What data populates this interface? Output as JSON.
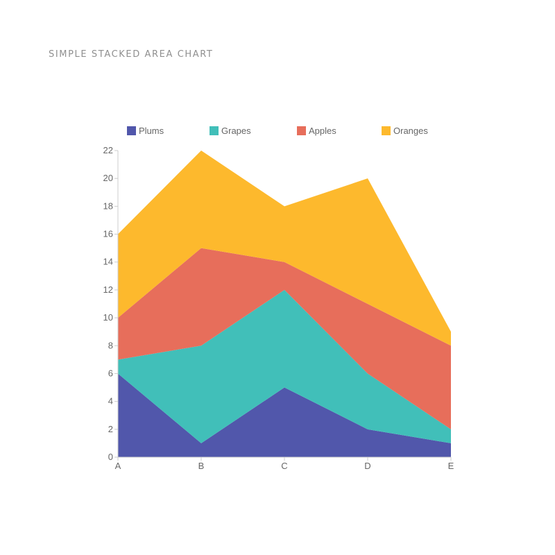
{
  "title": "SIMPLE STACKED AREA CHART",
  "chart_data": {
    "type": "area",
    "stacked": true,
    "title": "SIMPLE STACKED AREA CHART",
    "xlabel": "",
    "ylabel": "",
    "categories": [
      "A",
      "B",
      "C",
      "D",
      "E"
    ],
    "ylim": [
      0,
      22
    ],
    "yticks": [
      0,
      2,
      4,
      6,
      8,
      10,
      12,
      14,
      16,
      18,
      20,
      22
    ],
    "grid": false,
    "legend_position": "top",
    "series": [
      {
        "name": "Plums",
        "color": "#5157ab",
        "values": [
          6,
          1,
          5,
          2,
          1
        ]
      },
      {
        "name": "Grapes",
        "color": "#41bfb9",
        "values": [
          1,
          7,
          7,
          4,
          1
        ]
      },
      {
        "name": "Apples",
        "color": "#e76e5b",
        "values": [
          3,
          7,
          2,
          5,
          6
        ]
      },
      {
        "name": "Oranges",
        "color": "#fdb92d",
        "values": [
          6,
          7,
          4,
          9,
          1
        ]
      }
    ]
  }
}
